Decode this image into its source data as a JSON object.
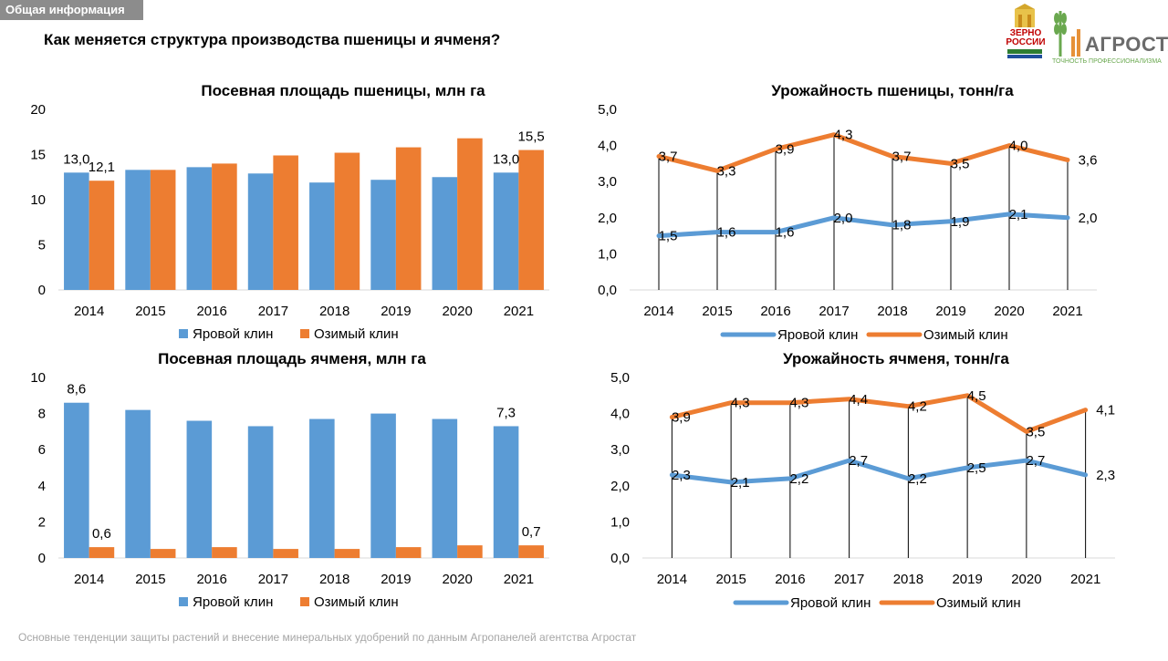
{
  "header": {
    "section_tag": "Общая информация",
    "title": "Как меняется структура производства пшеницы и ячменя?"
  },
  "logos": {
    "zerno_line1": "ЗЕРНО",
    "zerno_line2": "РОССИИ",
    "agrostat_name": "АГРОСТАТ",
    "agrostat_tagline": "ТОЧНОСТЬ ПРОФЕССИОНАЛИЗМА"
  },
  "footer": {
    "text": "Основные тенденции защиты растений и внесение минеральных удобрений  по данным Агропанелей агентства Агростат"
  },
  "colors": {
    "spring": "#5b9bd5",
    "winter": "#ed7d31",
    "axis": "#d9d9d9",
    "drop_line": "#000000"
  },
  "chart_data": [
    {
      "id": "wheat-area",
      "type": "bar",
      "title": "Посевная площадь пшеницы, млн га",
      "categories": [
        "2014",
        "2015",
        "2016",
        "2017",
        "2018",
        "2019",
        "2020",
        "2021"
      ],
      "series": [
        {
          "name": "Яровой клин",
          "values": [
            13.0,
            13.3,
            13.6,
            12.9,
            11.9,
            12.2,
            12.5,
            13.0
          ]
        },
        {
          "name": "Озимый клин",
          "values": [
            12.1,
            13.3,
            14.0,
            14.9,
            15.2,
            15.8,
            16.8,
            15.5
          ]
        }
      ],
      "data_labels": [
        {
          "series": 0,
          "index": 0,
          "text": "13,0"
        },
        {
          "series": 1,
          "index": 0,
          "text": "12,1"
        },
        {
          "series": 0,
          "index": 7,
          "text": "13,0"
        },
        {
          "series": 1,
          "index": 7,
          "text": "15,5"
        }
      ],
      "ylim": [
        0,
        20
      ],
      "yticks": [
        "0",
        "5",
        "10",
        "15",
        "20"
      ],
      "legend": "bottom"
    },
    {
      "id": "wheat-yield",
      "type": "line",
      "title": "Урожайность пшеницы, тонн/га",
      "categories": [
        "2014",
        "2015",
        "2016",
        "2017",
        "2018",
        "2019",
        "2020",
        "2021"
      ],
      "series": [
        {
          "name": "Яровой клин",
          "values": [
            1.5,
            1.6,
            1.6,
            2.0,
            1.8,
            1.9,
            2.1,
            2.0
          ]
        },
        {
          "name": "Озимый клин",
          "values": [
            3.7,
            3.3,
            3.9,
            4.3,
            3.7,
            3.5,
            4.0,
            3.6
          ]
        }
      ],
      "data_labels": [
        {
          "series": 0,
          "index": 0,
          "text": "1,5"
        },
        {
          "series": 0,
          "index": 1,
          "text": "1,6"
        },
        {
          "series": 0,
          "index": 2,
          "text": "1,6"
        },
        {
          "series": 0,
          "index": 3,
          "text": "2,0"
        },
        {
          "series": 0,
          "index": 4,
          "text": "1,8"
        },
        {
          "series": 0,
          "index": 5,
          "text": "1,9"
        },
        {
          "series": 0,
          "index": 6,
          "text": "2,1"
        },
        {
          "series": 0,
          "index": 7,
          "text": "2,0"
        },
        {
          "series": 1,
          "index": 0,
          "text": "3,7"
        },
        {
          "series": 1,
          "index": 1,
          "text": "3,3"
        },
        {
          "series": 1,
          "index": 2,
          "text": "3,9"
        },
        {
          "series": 1,
          "index": 3,
          "text": "4,3"
        },
        {
          "series": 1,
          "index": 4,
          "text": "3,7"
        },
        {
          "series": 1,
          "index": 5,
          "text": "3,5"
        },
        {
          "series": 1,
          "index": 6,
          "text": "4,0"
        },
        {
          "series": 1,
          "index": 7,
          "text": "3,6"
        }
      ],
      "ylim": [
        0,
        5
      ],
      "yticks": [
        "0,0",
        "1,0",
        "2,0",
        "3,0",
        "4,0",
        "5,0"
      ],
      "drop_lines": true,
      "legend": "bottom"
    },
    {
      "id": "barley-area",
      "type": "bar",
      "title": "Посевная площадь ячменя, млн га",
      "categories": [
        "2014",
        "2015",
        "2016",
        "2017",
        "2018",
        "2019",
        "2020",
        "2021"
      ],
      "series": [
        {
          "name": "Яровой клин",
          "values": [
            8.6,
            8.2,
            7.6,
            7.3,
            7.7,
            8.0,
            7.7,
            7.3
          ]
        },
        {
          "name": "Озимый клин",
          "values": [
            0.6,
            0.5,
            0.6,
            0.5,
            0.5,
            0.6,
            0.7,
            0.7
          ]
        }
      ],
      "data_labels": [
        {
          "series": 0,
          "index": 0,
          "text": "8,6"
        },
        {
          "series": 1,
          "index": 0,
          "text": "0,6"
        },
        {
          "series": 0,
          "index": 7,
          "text": "7,3"
        },
        {
          "series": 1,
          "index": 7,
          "text": "0,7"
        }
      ],
      "ylim": [
        0,
        10
      ],
      "yticks": [
        "0",
        "2",
        "4",
        "6",
        "8",
        "10"
      ],
      "legend": "bottom"
    },
    {
      "id": "barley-yield",
      "type": "line",
      "title": "Урожайность ячменя, тонн/га",
      "categories": [
        "2014",
        "2015",
        "2016",
        "2017",
        "2018",
        "2019",
        "2020",
        "2021"
      ],
      "series": [
        {
          "name": "Яровой клин",
          "values": [
            2.3,
            2.1,
            2.2,
            2.7,
            2.2,
            2.5,
            2.7,
            2.3
          ]
        },
        {
          "name": "Озимый клин",
          "values": [
            3.9,
            4.3,
            4.3,
            4.4,
            4.2,
            4.5,
            3.5,
            4.1
          ]
        }
      ],
      "data_labels": [
        {
          "series": 0,
          "index": 0,
          "text": "2,3"
        },
        {
          "series": 0,
          "index": 1,
          "text": "2,1"
        },
        {
          "series": 0,
          "index": 2,
          "text": "2,2"
        },
        {
          "series": 0,
          "index": 3,
          "text": "2,7"
        },
        {
          "series": 0,
          "index": 4,
          "text": "2,2"
        },
        {
          "series": 0,
          "index": 5,
          "text": "2,5"
        },
        {
          "series": 0,
          "index": 6,
          "text": "2,7"
        },
        {
          "series": 0,
          "index": 7,
          "text": "2,3"
        },
        {
          "series": 1,
          "index": 0,
          "text": "3,9"
        },
        {
          "series": 1,
          "index": 1,
          "text": "4,3"
        },
        {
          "series": 1,
          "index": 2,
          "text": "4,3"
        },
        {
          "series": 1,
          "index": 3,
          "text": "4,4"
        },
        {
          "series": 1,
          "index": 4,
          "text": "4,2"
        },
        {
          "series": 1,
          "index": 5,
          "text": "4,5"
        },
        {
          "series": 1,
          "index": 6,
          "text": "3,5"
        },
        {
          "series": 1,
          "index": 7,
          "text": "4,1"
        }
      ],
      "ylim": [
        0,
        5
      ],
      "yticks": [
        "0,0",
        "1,0",
        "2,0",
        "3,0",
        "4,0",
        "5,0"
      ],
      "drop_lines": true,
      "legend": "bottom"
    }
  ]
}
